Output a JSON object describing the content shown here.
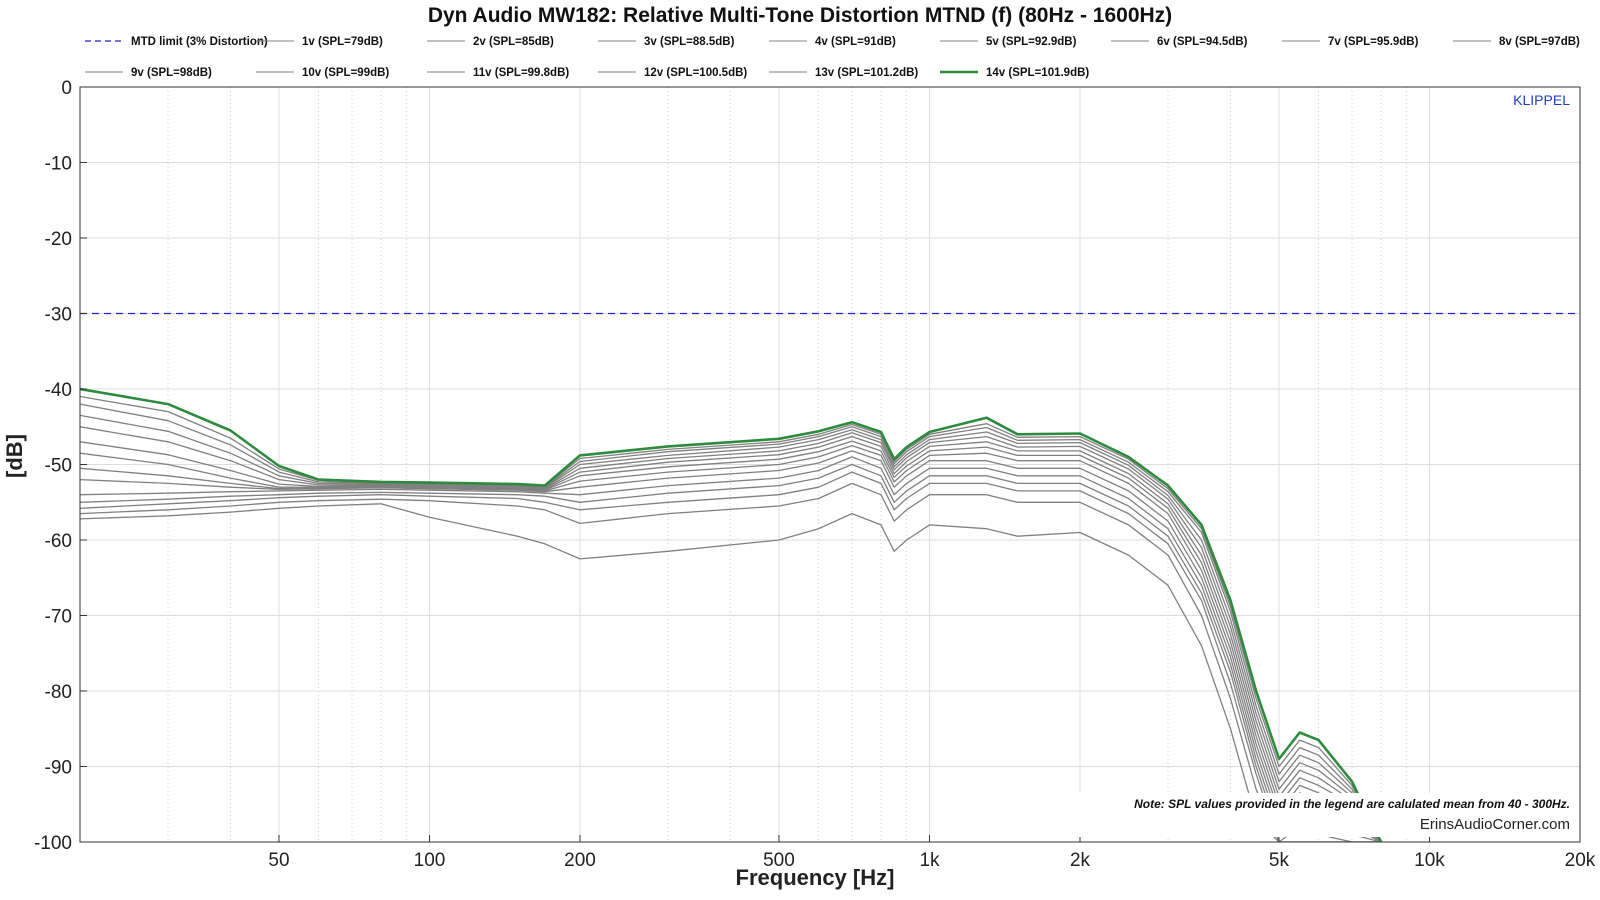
{
  "chart_data": {
    "type": "line",
    "title": "Dyn Audio MW182: Relative Multi-Tone Distortion MTND (f) (80Hz - 1600Hz)",
    "xlabel": "Frequency [Hz]",
    "ylabel": "[dB]",
    "xscale": "log",
    "xlim": [
      20,
      20000
    ],
    "ylim": [
      -100,
      0
    ],
    "x_ticks": [
      50,
      100,
      200,
      500,
      1000,
      2000,
      5000,
      10000,
      20000
    ],
    "x_tick_labels": [
      "50",
      "100",
      "200",
      "500",
      "1k",
      "2k",
      "5k",
      "10k",
      "20k"
    ],
    "y_ticks": [
      0,
      -10,
      -20,
      -30,
      -40,
      -50,
      -60,
      -70,
      -80,
      -90,
      -100
    ],
    "y_tick_labels": [
      "0",
      "-10",
      "-20",
      "-30",
      "-40",
      "-50",
      "-60",
      "-70",
      "-80",
      "-90",
      "-100"
    ],
    "grid": true,
    "legend_position": "top",
    "limit_line": {
      "name": "MTD limit (3% Distortion)",
      "y": -30,
      "color": "#2222cc",
      "style": "dashed"
    },
    "series_color": "#808080",
    "highlight_color": "#2e8b3e",
    "x": [
      20,
      30,
      40,
      50,
      60,
      80,
      100,
      150,
      170,
      200,
      300,
      500,
      600,
      700,
      800,
      850,
      900,
      1000,
      1300,
      1500,
      2000,
      2500,
      3000,
      3500,
      4000,
      4500,
      5000,
      5500,
      6000,
      7000,
      8000
    ],
    "series": [
      {
        "name": "1v (SPL=79dB)",
        "values": [
          -57.2,
          -56.8,
          -56.3,
          -55.8,
          -55.5,
          -55.2,
          -57.0,
          -59.5,
          -60.5,
          -62.5,
          -61.5,
          -60.0,
          -58.5,
          -56.5,
          -58.0,
          -61.5,
          -60.0,
          -58.0,
          -58.5,
          -59.5,
          -59.0,
          -62.0,
          -66.0,
          -74.0,
          -85.0,
          -97.0,
          -100,
          -100,
          -100,
          -100,
          -100
        ]
      },
      {
        "name": "2v (SPL=85dB)",
        "values": [
          -56.5,
          -56.0,
          -55.5,
          -55.0,
          -54.8,
          -54.6,
          -54.8,
          -55.5,
          -56.0,
          -57.8,
          -56.5,
          -55.5,
          -54.5,
          -52.5,
          -54.0,
          -57.5,
          -56.0,
          -54.0,
          -54.0,
          -55.0,
          -55.0,
          -58.0,
          -62.0,
          -70.0,
          -81.0,
          -93.0,
          -100,
          -100,
          -100,
          -100,
          -100
        ]
      },
      {
        "name": "3v (SPL=88.5dB)",
        "values": [
          -55.8,
          -55.2,
          -54.8,
          -54.4,
          -54.2,
          -54.0,
          -54.2,
          -54.5,
          -55.0,
          -56.0,
          -55.0,
          -54.0,
          -53.0,
          -51.0,
          -52.5,
          -56.0,
          -54.5,
          -52.5,
          -52.5,
          -53.5,
          -53.5,
          -56.5,
          -60.5,
          -68.0,
          -79.0,
          -91.0,
          -100,
          -98.0,
          -99.0,
          -100,
          -100
        ]
      },
      {
        "name": "4v (SPL=91dB)",
        "values": [
          -55.0,
          -54.6,
          -54.2,
          -54.0,
          -53.8,
          -53.7,
          -53.8,
          -54.0,
          -54.2,
          -55.0,
          -53.8,
          -52.8,
          -51.8,
          -50.0,
          -51.5,
          -55.0,
          -53.5,
          -51.5,
          -51.5,
          -52.5,
          -52.5,
          -55.5,
          -59.5,
          -67.0,
          -77.5,
          -90.0,
          -99.0,
          -96.0,
          -97.0,
          -99.0,
          -100
        ]
      },
      {
        "name": "5v (SPL=92.9dB)",
        "values": [
          -54.0,
          -53.8,
          -53.6,
          -53.5,
          -53.4,
          -53.3,
          -53.4,
          -53.6,
          -53.8,
          -54.0,
          -52.8,
          -51.8,
          -50.8,
          -49.0,
          -50.5,
          -54.0,
          -52.5,
          -50.5,
          -50.5,
          -51.5,
          -51.5,
          -54.5,
          -58.5,
          -66.0,
          -76.5,
          -89.0,
          -98.0,
          -94.5,
          -95.5,
          -98.0,
          -100
        ]
      },
      {
        "name": "6v (SPL=94.5dB)",
        "values": [
          -52.0,
          -52.5,
          -53.0,
          -53.3,
          -53.2,
          -53.1,
          -53.2,
          -53.4,
          -53.6,
          -53.0,
          -51.8,
          -50.8,
          -49.8,
          -48.2,
          -49.5,
          -53.0,
          -51.5,
          -49.5,
          -49.5,
          -50.5,
          -50.5,
          -53.5,
          -57.5,
          -65.0,
          -75.5,
          -88.0,
          -97.0,
          -93.5,
          -94.5,
          -97.0,
          -100
        ]
      },
      {
        "name": "7v (SPL=95.9dB)",
        "values": [
          -50.5,
          -51.5,
          -52.5,
          -53.2,
          -53.1,
          -53.0,
          -53.1,
          -53.3,
          -53.5,
          -52.2,
          -51.0,
          -50.0,
          -49.0,
          -47.5,
          -48.8,
          -52.3,
          -50.8,
          -48.8,
          -48.5,
          -49.5,
          -49.5,
          -52.5,
          -56.5,
          -64.0,
          -74.5,
          -87.0,
          -96.0,
          -92.5,
          -93.5,
          -96.0,
          -100
        ]
      },
      {
        "name": "8v (SPL=97dB)",
        "values": [
          -48.5,
          -50.0,
          -51.8,
          -53.0,
          -53.0,
          -52.9,
          -53.0,
          -53.2,
          -53.4,
          -51.5,
          -50.3,
          -49.3,
          -48.3,
          -46.9,
          -48.2,
          -51.7,
          -50.2,
          -48.2,
          -47.7,
          -48.8,
          -48.8,
          -51.8,
          -55.8,
          -63.0,
          -73.5,
          -86.0,
          -95.0,
          -91.5,
          -92.5,
          -95.0,
          -100
        ]
      },
      {
        "name": "9v (SPL=98dB)",
        "values": [
          -47.0,
          -48.7,
          -50.8,
          -52.6,
          -52.9,
          -52.8,
          -52.9,
          -53.1,
          -53.3,
          -51.0,
          -49.7,
          -48.7,
          -47.7,
          -46.3,
          -47.6,
          -51.2,
          -49.6,
          -47.6,
          -47.0,
          -48.2,
          -48.2,
          -51.2,
          -55.2,
          -62.0,
          -72.5,
          -85.0,
          -94.0,
          -90.5,
          -91.5,
          -94.5,
          -100
        ]
      },
      {
        "name": "10v (SPL=99dB)",
        "values": [
          -45.0,
          -47.0,
          -49.5,
          -52.0,
          -52.7,
          -52.7,
          -52.8,
          -53.0,
          -53.2,
          -50.5,
          -49.2,
          -48.2,
          -47.2,
          -45.8,
          -47.1,
          -50.7,
          -49.1,
          -47.1,
          -46.3,
          -47.7,
          -47.6,
          -50.6,
          -54.6,
          -61.0,
          -71.5,
          -84.0,
          -93.0,
          -89.5,
          -90.5,
          -94.0,
          -100
        ]
      },
      {
        "name": "11v (SPL=99.8dB)",
        "values": [
          -43.5,
          -45.6,
          -48.5,
          -51.5,
          -52.5,
          -52.6,
          -52.7,
          -52.9,
          -53.1,
          -50.0,
          -48.8,
          -47.7,
          -46.7,
          -45.4,
          -46.7,
          -50.3,
          -48.7,
          -46.7,
          -45.7,
          -47.2,
          -47.1,
          -50.1,
          -54.1,
          -60.0,
          -70.5,
          -83.0,
          -92.0,
          -88.5,
          -89.5,
          -93.5,
          -100
        ]
      },
      {
        "name": "12v (SPL=100.5dB)",
        "values": [
          -42.0,
          -44.2,
          -47.4,
          -51.0,
          -52.3,
          -52.5,
          -52.6,
          -52.8,
          -53.0,
          -49.6,
          -48.3,
          -47.3,
          -46.3,
          -45.0,
          -46.3,
          -49.9,
          -48.3,
          -46.3,
          -45.1,
          -46.8,
          -46.7,
          -49.7,
          -53.6,
          -59.0,
          -69.5,
          -82.0,
          -91.0,
          -87.5,
          -88.5,
          -93.0,
          -100
        ]
      },
      {
        "name": "13v (SPL=101.2dB)",
        "values": [
          -41.0,
          -43.0,
          -46.5,
          -50.6,
          -52.1,
          -52.4,
          -52.5,
          -52.7,
          -52.9,
          -49.2,
          -48.0,
          -47.0,
          -46.0,
          -44.7,
          -46.0,
          -49.6,
          -48.0,
          -46.0,
          -44.6,
          -46.4,
          -46.3,
          -49.3,
          -53.2,
          -58.5,
          -68.8,
          -81.0,
          -90.0,
          -86.5,
          -87.5,
          -92.5,
          -100
        ]
      },
      {
        "name": "14v (SPL=101.9dB)",
        "highlight": true,
        "values": [
          -40.0,
          -42.0,
          -45.5,
          -50.2,
          -52.0,
          -52.3,
          -52.4,
          -52.6,
          -52.8,
          -48.8,
          -47.6,
          -46.6,
          -45.6,
          -44.4,
          -45.7,
          -49.3,
          -47.7,
          -45.7,
          -43.8,
          -46.0,
          -45.9,
          -49.0,
          -52.8,
          -58.0,
          -68.0,
          -80.0,
          -89.0,
          -85.5,
          -86.5,
          -92.0,
          -100
        ]
      }
    ],
    "annotations": {
      "brand": "KLIPPEL",
      "note": "Note: SPL values provided in the legend are calulated mean from 40 - 300Hz.",
      "credit": "ErinsAudioCorner.com"
    }
  }
}
